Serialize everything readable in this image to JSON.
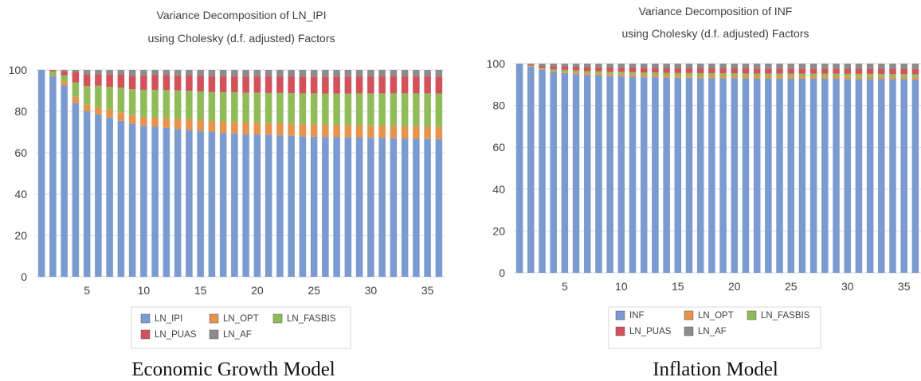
{
  "charts": [
    {
      "title_line1": "Variance Decomposition of LN_IPI",
      "title_line2": "using Cholesky (d.f. adjusted) Factors",
      "caption": "Economic Growth Model"
    },
    {
      "title_line1": "Variance Decomposition of INF",
      "title_line2": "using Cholesky (d.f. adjusted) Factors",
      "caption": "Inflation Model"
    }
  ],
  "colors": {
    "blue": "#7b9bd0",
    "orange": "#e6944c",
    "green": "#8fbc59",
    "red": "#d2525b",
    "gray": "#8c8c8c"
  },
  "chart_data": [
    {
      "type": "bar",
      "stacked": true,
      "title": "Variance Decomposition of LN_IPI using Cholesky (d.f. adjusted) Factors",
      "x": [
        1,
        2,
        3,
        4,
        5,
        6,
        7,
        8,
        9,
        10,
        11,
        12,
        13,
        14,
        15,
        16,
        17,
        18,
        19,
        20,
        21,
        22,
        23,
        24,
        25,
        26,
        27,
        28,
        29,
        30,
        31,
        32,
        33,
        34,
        35,
        36
      ],
      "x_ticks": [
        5,
        10,
        15,
        20,
        25,
        30,
        35
      ],
      "ylim": [
        0,
        100
      ],
      "y_ticks": [
        0,
        20,
        40,
        60,
        80,
        100
      ],
      "legend": [
        "LN_IPI",
        "LN_OPT",
        "LN_FASBIS",
        "LN_PUAS",
        "LN_AF"
      ],
      "legend_position": "bottom",
      "series": [
        {
          "name": "LN_IPI",
          "color": "#7b9bd0",
          "values": [
            100,
            97,
            92.5,
            84,
            80,
            78.5,
            77,
            75.5,
            74,
            73,
            72.5,
            72,
            71.5,
            71,
            70.5,
            70,
            69.5,
            69.3,
            69,
            68.8,
            68.6,
            68.4,
            68.2,
            68,
            67.8,
            67.6,
            67.5,
            67.4,
            67.3,
            67.2,
            67.1,
            67,
            66.9,
            66.8,
            66.7,
            66.6
          ]
        },
        {
          "name": "LN_OPT",
          "color": "#e6944c",
          "values": [
            0,
            0.3,
            2,
            3,
            3.2,
            3.5,
            3.8,
            4,
            4.2,
            4.4,
            4.6,
            4.8,
            5,
            5.2,
            5.3,
            5.4,
            5.5,
            5.6,
            5.6,
            5.7,
            5.7,
            5.8,
            5.8,
            5.8,
            5.9,
            5.9,
            5.9,
            5.9,
            6,
            6,
            6,
            6,
            6,
            6,
            6,
            6
          ]
        },
        {
          "name": "LN_FASBIS",
          "color": "#8fbc59",
          "values": [
            0,
            2,
            3,
            7,
            9,
            10.5,
            11,
            12,
            12.5,
            13,
            13.3,
            13.5,
            13.6,
            13.7,
            13.8,
            14,
            14.2,
            14.3,
            14.4,
            14.5,
            14.6,
            14.7,
            14.8,
            14.9,
            15,
            15.1,
            15.2,
            15.3,
            15.4,
            15.5,
            15.6,
            15.7,
            15.8,
            15.9,
            16,
            16
          ]
        },
        {
          "name": "LN_PUAS",
          "color": "#d2525b",
          "values": [
            0,
            0.5,
            2,
            5,
            5.5,
            5.5,
            6,
            6.2,
            6.5,
            7,
            7.1,
            7.2,
            7.3,
            7.4,
            7.5,
            7.6,
            7.7,
            7.8,
            7.9,
            7.9,
            8,
            8,
            8.1,
            8.1,
            8.1,
            8.2,
            8.2,
            8.2,
            8.2,
            8.2,
            8.2,
            8.2,
            8.2,
            8.2,
            8.2,
            8.2
          ]
        },
        {
          "name": "LN_AF",
          "color": "#8c8c8c",
          "values": [
            0,
            0.2,
            0.5,
            1,
            2.3,
            2,
            2.2,
            2.3,
            2.8,
            2.6,
            2.5,
            2.5,
            2.6,
            2.7,
            2.9,
            3,
            3.1,
            3,
            3.1,
            3.1,
            3.1,
            3.1,
            3.1,
            3.2,
            3.2,
            3.2,
            3.2,
            3.2,
            3.1,
            3.1,
            3.1,
            3.1,
            3.1,
            3.1,
            3.1,
            3.2
          ]
        }
      ]
    },
    {
      "type": "bar",
      "stacked": true,
      "title": "Variance Decomposition of INF using Cholesky (d.f. adjusted) Factors",
      "x": [
        1,
        2,
        3,
        4,
        5,
        6,
        7,
        8,
        9,
        10,
        11,
        12,
        13,
        14,
        15,
        16,
        17,
        18,
        19,
        20,
        21,
        22,
        23,
        24,
        25,
        26,
        27,
        28,
        29,
        30,
        31,
        32,
        33,
        34,
        35,
        36
      ],
      "x_ticks": [
        5,
        10,
        15,
        20,
        25,
        30,
        35
      ],
      "ylim": [
        0,
        100
      ],
      "y_ticks": [
        0,
        20,
        40,
        60,
        80,
        100
      ],
      "legend": [
        "INF",
        "LN_OPT",
        "LN_FASBIS",
        "LN_PUAS",
        "LN_AF"
      ],
      "legend_position": "bottom",
      "series": [
        {
          "name": "INF",
          "color": "#7b9bd0",
          "values": [
            100,
            98.5,
            97,
            96,
            95.5,
            95,
            94.5,
            94.5,
            94,
            94,
            93.8,
            93.5,
            93.5,
            93.3,
            93.2,
            93.2,
            93,
            93,
            93,
            93,
            92.9,
            92.8,
            92.8,
            92.8,
            92.8,
            92.8,
            92.8,
            92.8,
            92.8,
            92.7,
            92.7,
            92.7,
            92.6,
            92.6,
            92.6,
            92.5
          ]
        },
        {
          "name": "LN_OPT",
          "color": "#e6944c",
          "values": [
            0,
            0.2,
            0.3,
            0.5,
            0.6,
            0.7,
            0.8,
            0.8,
            0.9,
            0.9,
            1,
            1,
            1,
            1,
            1,
            1,
            1.1,
            1.1,
            1.1,
            1.1,
            1.1,
            1.1,
            1.1,
            1.1,
            1.1,
            1.1,
            1.1,
            1.1,
            1.1,
            1.1,
            1.1,
            1.1,
            1.1,
            1.1,
            1.1,
            1.1
          ]
        },
        {
          "name": "LN_FASBIS",
          "color": "#8fbc59",
          "values": [
            0,
            0.3,
            0.7,
            0.8,
            0.9,
            1,
            1.1,
            1.1,
            1.2,
            1.2,
            1.2,
            1.3,
            1.3,
            1.3,
            1.3,
            1.3,
            1.3,
            1.3,
            1.3,
            1.3,
            1.3,
            1.3,
            1.3,
            1.3,
            1.3,
            1.3,
            1.3,
            1.3,
            1.3,
            1.3,
            1.3,
            1.3,
            1.3,
            1.3,
            1.3,
            1.3
          ]
        },
        {
          "name": "LN_PUAS",
          "color": "#d2525b",
          "values": [
            0,
            0.5,
            1,
            1.5,
            1.7,
            1.8,
            1.9,
            2,
            2,
            2.1,
            2.1,
            2.2,
            2.2,
            2.3,
            2.3,
            2.3,
            2.3,
            2.3,
            2.3,
            2.3,
            2.4,
            2.4,
            2.4,
            2.4,
            2.4,
            2.4,
            2.4,
            2.4,
            2.4,
            2.4,
            2.4,
            2.4,
            2.5,
            2.5,
            2.5,
            2.5
          ]
        },
        {
          "name": "LN_AF",
          "color": "#8c8c8c",
          "values": [
            0,
            0.5,
            1,
            1.2,
            1.3,
            1.5,
            1.7,
            1.6,
            1.9,
            1.8,
            1.9,
            2,
            2,
            2.1,
            2.2,
            2.2,
            2.3,
            2.3,
            2.3,
            2.3,
            2.3,
            2.4,
            2.4,
            2.4,
            2.4,
            2.4,
            2.4,
            2.4,
            2.4,
            2.5,
            2.5,
            2.5,
            2.5,
            2.5,
            2.5,
            2.6
          ]
        }
      ]
    }
  ]
}
